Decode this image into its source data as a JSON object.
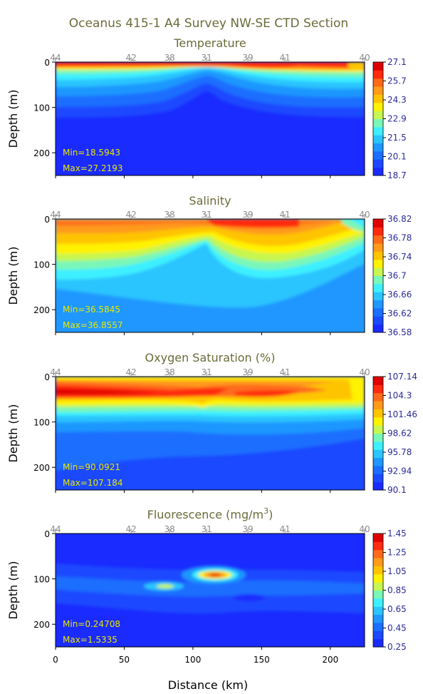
{
  "title": "Oceanus 415-1 A4 Survey NW-SE CTD Section",
  "x_axis_label": "Distance (km)",
  "x_ticks": [
    "0",
    "50",
    "100",
    "150",
    "200"
  ],
  "x_tick_values": [
    0,
    50,
    100,
    150,
    200
  ],
  "x_range": [
    0,
    225
  ],
  "y_axis_label": "Depth (m)",
  "y_ticks": [
    "0",
    "100",
    "200"
  ],
  "y_tick_values": [
    0,
    100,
    200
  ],
  "y_range": [
    0,
    250
  ],
  "stations": [
    "44",
    "42",
    "38",
    "31",
    "39",
    "41",
    "40"
  ],
  "station_km": [
    0,
    55,
    83,
    110,
    140,
    167,
    225
  ],
  "colormap": [
    "#1a2bff",
    "#1b49ff",
    "#1b6eff",
    "#1f97ff",
    "#2bc4ff",
    "#3ef0ff",
    "#7af7b8",
    "#c6f64f",
    "#fff200",
    "#ffc400",
    "#ff9a1a",
    "#ff6a1a",
    "#ff2a10",
    "#e00000"
  ],
  "panels": [
    {
      "key": "temperature",
      "title": "Temperature",
      "colorbar_labels": [
        "27.1",
        "25.7",
        "24.3",
        "22.9",
        "21.5",
        "20.1",
        "18.7"
      ],
      "min_text": "Min=18.5943",
      "max_text": "Max=27.2193"
    },
    {
      "key": "salinity",
      "title": "Salinity",
      "colorbar_labels": [
        "36.82",
        "36.78",
        "36.74",
        "36.7",
        "36.66",
        "36.62",
        "36.58"
      ],
      "min_text": "Min=36.5845",
      "max_text": "Max=36.8557"
    },
    {
      "key": "oxygen",
      "title": "Oxygen Saturation (%)",
      "colorbar_labels": [
        "107.14",
        "104.3",
        "101.46",
        "98.62",
        "95.78",
        "92.94",
        "90.1"
      ],
      "min_text": "Min=90.0921",
      "max_text": "Max=107.184"
    },
    {
      "key": "fluorescence",
      "title_main": "Fluorescence (mg/m",
      "title_sup": "3",
      "title_end": ")",
      "colorbar_labels": [
        "1.45",
        "1.25",
        "1.05",
        "0.85",
        "0.65",
        "0.45",
        "0.25"
      ],
      "min_text": "Min=0.24708",
      "max_text": "Max=1.5335"
    }
  ],
  "chart_data": {
    "type": "heatmap",
    "layout": "4 stacked contour sections sharing distance axis",
    "xlabel": "Distance (km)",
    "ylabel": "Depth (m)",
    "xlim": [
      0,
      225
    ],
    "ylim": [
      250,
      0
    ],
    "stations": [
      {
        "name": "44",
        "km": 0
      },
      {
        "name": "42",
        "km": 55
      },
      {
        "name": "38",
        "km": 83
      },
      {
        "name": "31",
        "km": 110
      },
      {
        "name": "39",
        "km": 140
      },
      {
        "name": "41",
        "km": 167
      },
      {
        "name": "40",
        "km": 225
      }
    ],
    "series": [
      {
        "name": "Temperature",
        "min": 18.5943,
        "max": 27.2193,
        "colorbar": [
          18.7,
          20.1,
          21.5,
          22.9,
          24.3,
          25.7,
          27.1
        ]
      },
      {
        "name": "Salinity",
        "min": 36.5845,
        "max": 36.8557,
        "colorbar": [
          36.58,
          36.62,
          36.66,
          36.7,
          36.74,
          36.78,
          36.82
        ]
      },
      {
        "name": "Oxygen Saturation (%)",
        "min": 90.0921,
        "max": 107.184,
        "colorbar": [
          90.1,
          92.94,
          95.78,
          98.62,
          101.46,
          104.3,
          107.14
        ]
      },
      {
        "name": "Fluorescence (mg/m3)",
        "min": 0.24708,
        "max": 1.5335,
        "colorbar": [
          0.25,
          0.45,
          0.65,
          0.85,
          1.05,
          1.25,
          1.45
        ]
      }
    ]
  }
}
